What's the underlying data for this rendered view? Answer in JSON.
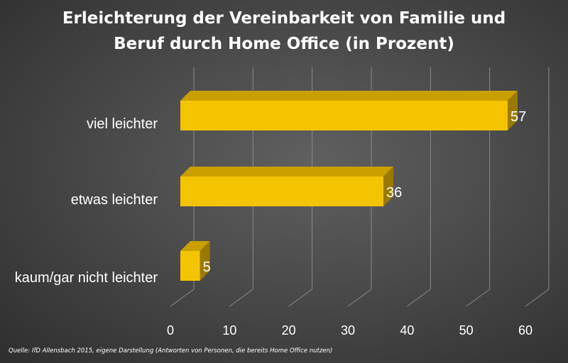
{
  "chart_data": {
    "type": "bar",
    "orientation": "horizontal",
    "title_lines": [
      "Erleichterung der Vereinbarkeit von Familie und",
      "Beruf durch Home Office (in Prozent)"
    ],
    "categories": [
      "viel leichter",
      "etwas leichter",
      "kaum/gar nicht leichter"
    ],
    "values": [
      57,
      36,
      5
    ],
    "data_labels": [
      "57",
      "36",
      "5"
    ],
    "x_ticks": [
      "0",
      "10",
      "20",
      "30",
      "40",
      "50",
      "60"
    ],
    "xlim": [
      0,
      60
    ],
    "grid": true,
    "legend": "none",
    "bar_color": "#f5c400",
    "bar_top_color": "#c9a000",
    "bar_side_color": "#9a7a00"
  },
  "source": "Quelle: IfD Allensbach  2015, eigene Darstellung (Antworten von Personen, die bereits Home Office nutzen)"
}
